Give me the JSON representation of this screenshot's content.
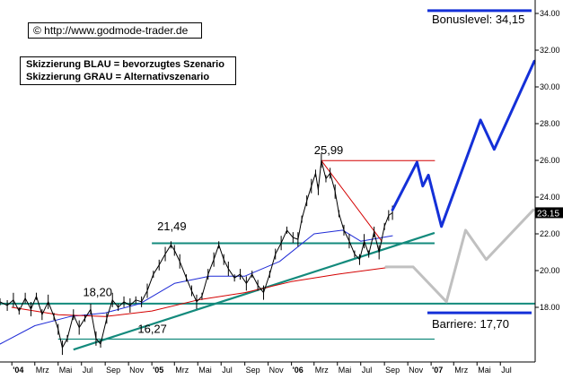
{
  "source_label": "© http://www.godmode-trader.de",
  "legend_lines": [
    "Skizzierung BLAU = bevorzugtes Szenario",
    "Skizzierung GRAU = Alternativszenario"
  ],
  "colors": {
    "price": "#000000",
    "ma_blue": "#1f2bd6",
    "ma_red": "#d40000",
    "trendline": "#138a7c",
    "scenario_preferred": "#1430d8",
    "scenario_alternative": "#c0c0c0",
    "resistance_line": "#d40000",
    "last_price_bg": "#000000",
    "last_price_fg": "#ffffff"
  },
  "chart_data": {
    "type": "line",
    "xlim": [
      "2003-12-01",
      "2007-09-30"
    ],
    "ylim": [
      15.0,
      34.3
    ],
    "y_ticks": [
      18.0,
      20.0,
      22.0,
      24.0,
      26.0,
      28.0,
      30.0,
      32.0,
      34.0
    ],
    "y_tick_labels": [
      "18.00",
      "20.00",
      "22.00",
      "24.00",
      "26.00",
      "28.00",
      "30.00",
      "32.00",
      "34.00"
    ],
    "x_ticks": [
      {
        "label": "'04",
        "date": "2004-01-01",
        "bold": true
      },
      {
        "label": "Mrz",
        "date": "2004-03-01",
        "bold": false
      },
      {
        "label": "Mai",
        "date": "2004-05-01",
        "bold": false
      },
      {
        "label": "Jul",
        "date": "2004-07-01",
        "bold": false
      },
      {
        "label": "Sep",
        "date": "2004-09-01",
        "bold": false
      },
      {
        "label": "Nov",
        "date": "2004-11-01",
        "bold": false
      },
      {
        "label": "'05",
        "date": "2005-01-01",
        "bold": true
      },
      {
        "label": "Mrz",
        "date": "2005-03-01",
        "bold": false
      },
      {
        "label": "Mai",
        "date": "2005-05-01",
        "bold": false
      },
      {
        "label": "Jul",
        "date": "2005-07-01",
        "bold": false
      },
      {
        "label": "Sep",
        "date": "2005-09-01",
        "bold": false
      },
      {
        "label": "Nov",
        "date": "2005-11-01",
        "bold": false
      },
      {
        "label": "'06",
        "date": "2006-01-01",
        "bold": true
      },
      {
        "label": "Mrz",
        "date": "2006-03-01",
        "bold": false
      },
      {
        "label": "Mai",
        "date": "2006-05-01",
        "bold": false
      },
      {
        "label": "Jul",
        "date": "2006-07-01",
        "bold": false
      },
      {
        "label": "Sep",
        "date": "2006-09-01",
        "bold": false
      },
      {
        "label": "Nov",
        "date": "2006-11-01",
        "bold": false
      },
      {
        "label": "'07",
        "date": "2007-01-01",
        "bold": true
      },
      {
        "label": "Mrz",
        "date": "2007-03-01",
        "bold": false
      },
      {
        "label": "Mai",
        "date": "2007-05-01",
        "bold": false
      },
      {
        "label": "Jul",
        "date": "2007-07-01",
        "bold": false
      }
    ],
    "last_price": "23.15",
    "series": [
      {
        "role": "price",
        "points": [
          [
            "2003-12-01",
            18.3
          ],
          [
            "2003-12-20",
            18.1
          ],
          [
            "2004-01-05",
            18.4
          ],
          [
            "2004-01-20",
            17.8
          ],
          [
            "2004-02-05",
            18.5
          ],
          [
            "2004-02-20",
            17.9
          ],
          [
            "2004-03-05",
            18.6
          ],
          [
            "2004-03-20",
            17.6
          ],
          [
            "2004-04-05",
            18.3
          ],
          [
            "2004-04-20",
            17.5
          ],
          [
            "2004-05-01",
            16.8
          ],
          [
            "2004-05-12",
            15.8
          ],
          [
            "2004-05-25",
            16.3
          ],
          [
            "2004-06-10",
            17.6
          ],
          [
            "2004-06-25",
            16.9
          ],
          [
            "2004-07-10",
            17.4
          ],
          [
            "2004-07-25",
            17.9
          ],
          [
            "2004-08-08",
            16.3
          ],
          [
            "2004-08-20",
            16.0
          ],
          [
            "2004-09-05",
            17.4
          ],
          [
            "2004-09-20",
            18.4
          ],
          [
            "2004-10-05",
            18.0
          ],
          [
            "2004-10-20",
            18.3
          ],
          [
            "2004-11-05",
            18.1
          ],
          [
            "2004-11-20",
            18.4
          ],
          [
            "2004-12-05",
            18.3
          ],
          [
            "2004-12-20",
            18.9
          ],
          [
            "2005-01-05",
            19.8
          ],
          [
            "2005-01-20",
            20.3
          ],
          [
            "2005-02-05",
            20.9
          ],
          [
            "2005-02-20",
            21.4
          ],
          [
            "2005-03-01",
            21.1
          ],
          [
            "2005-03-15",
            20.5
          ],
          [
            "2005-04-01",
            19.6
          ],
          [
            "2005-04-15",
            18.9
          ],
          [
            "2005-04-28",
            18.3
          ],
          [
            "2005-05-12",
            18.6
          ],
          [
            "2005-05-28",
            19.8
          ],
          [
            "2005-06-12",
            20.6
          ],
          [
            "2005-06-25",
            21.4
          ],
          [
            "2005-07-08",
            20.6
          ],
          [
            "2005-07-20",
            20.1
          ],
          [
            "2005-08-05",
            19.6
          ],
          [
            "2005-08-20",
            19.8
          ],
          [
            "2005-09-05",
            19.3
          ],
          [
            "2005-09-20",
            19.8
          ],
          [
            "2005-10-05",
            19.2
          ],
          [
            "2005-10-20",
            18.8
          ],
          [
            "2005-11-05",
            19.8
          ],
          [
            "2005-11-20",
            20.9
          ],
          [
            "2005-12-05",
            21.5
          ],
          [
            "2005-12-20",
            22.2
          ],
          [
            "2006-01-05",
            21.8
          ],
          [
            "2006-01-18",
            21.7
          ],
          [
            "2006-01-28",
            22.8
          ],
          [
            "2006-02-10",
            23.8
          ],
          [
            "2006-02-22",
            24.6
          ],
          [
            "2006-03-05",
            25.3
          ],
          [
            "2006-03-12",
            24.4
          ],
          [
            "2006-03-20",
            25.99
          ],
          [
            "2006-04-01",
            25.0
          ],
          [
            "2006-04-12",
            25.3
          ],
          [
            "2006-04-25",
            24.3
          ],
          [
            "2006-05-05",
            23.1
          ],
          [
            "2006-05-18",
            22.2
          ],
          [
            "2006-06-01",
            21.6
          ],
          [
            "2006-06-15",
            20.9
          ],
          [
            "2006-06-28",
            20.6
          ],
          [
            "2006-07-10",
            21.6
          ],
          [
            "2006-07-22",
            20.9
          ],
          [
            "2006-08-05",
            22.1
          ],
          [
            "2006-08-18",
            21.0
          ],
          [
            "2006-09-01",
            22.4
          ],
          [
            "2006-09-12",
            23.0
          ],
          [
            "2006-09-22",
            23.15
          ]
        ]
      },
      {
        "role": "moving-average-blue",
        "points": [
          [
            "2003-12-01",
            16.0
          ],
          [
            "2004-03-01",
            17.0
          ],
          [
            "2004-06-01",
            17.5
          ],
          [
            "2004-09-01",
            17.7
          ],
          [
            "2004-12-01",
            18.2
          ],
          [
            "2005-03-01",
            19.3
          ],
          [
            "2005-06-01",
            19.7
          ],
          [
            "2005-09-01",
            19.7
          ],
          [
            "2005-12-01",
            20.5
          ],
          [
            "2006-03-01",
            22.0
          ],
          [
            "2006-05-15",
            22.2
          ],
          [
            "2006-07-01",
            21.6
          ],
          [
            "2006-09-22",
            21.9
          ]
        ]
      },
      {
        "role": "moving-average-red",
        "points": [
          [
            "2004-01-01",
            18.0
          ],
          [
            "2004-05-01",
            17.6
          ],
          [
            "2004-09-01",
            17.5
          ],
          [
            "2005-01-01",
            17.8
          ],
          [
            "2005-05-01",
            18.4
          ],
          [
            "2005-09-01",
            18.8
          ],
          [
            "2006-01-01",
            19.4
          ],
          [
            "2006-05-01",
            19.8
          ],
          [
            "2006-09-22",
            20.2
          ]
        ]
      }
    ],
    "horizontal_lines": [
      {
        "value": 21.49,
        "from": "2005-01-01",
        "to": "2007-01-10",
        "label": "21,49",
        "color": "#138a7c"
      },
      {
        "value": 18.2,
        "from": "2003-12-01",
        "to": "2007-09-30",
        "label": "18,20",
        "color": "#138a7c"
      },
      {
        "value": 16.27,
        "from": "2004-05-01",
        "to": "2007-01-10",
        "label": "16,27",
        "color": "#138a7c"
      }
    ],
    "trendline": {
      "from": [
        "2004-06-10",
        15.7
      ],
      "to": [
        "2007-01-10",
        22.05
      ]
    },
    "resistance": {
      "points": [
        [
          "2006-03-20",
          25.99
        ],
        [
          "2007-01-10",
          25.99
        ]
      ],
      "diagonal_to": [
        "2006-08-25",
        21.6
      ]
    },
    "scenario_preferred": [
      [
        "2006-09-22",
        23.3
      ],
      [
        "2006-11-25",
        25.9
      ],
      [
        "2006-12-10",
        24.6
      ],
      [
        "2006-12-25",
        25.2
      ],
      [
        "2007-01-28",
        22.4
      ],
      [
        "2007-05-10",
        28.2
      ],
      [
        "2007-06-15",
        26.6
      ],
      [
        "2007-09-28",
        31.4
      ]
    ],
    "scenario_alternative": [
      [
        "2006-09-05",
        20.2
      ],
      [
        "2006-11-15",
        20.2
      ],
      [
        "2007-02-10",
        18.3
      ],
      [
        "2007-04-01",
        22.2
      ],
      [
        "2007-05-25",
        20.6
      ],
      [
        "2007-09-25",
        23.3
      ]
    ],
    "annotations": [
      {
        "text": "25,99",
        "x": "2006-03-01",
        "y": 26.35
      },
      {
        "text": "21,49",
        "x": "2005-01-15",
        "y": 22.2
      },
      {
        "text": "18,20",
        "x": "2004-07-05",
        "y": 18.6
      },
      {
        "text": "16,27",
        "x": "2004-11-25",
        "y": 16.6
      }
    ],
    "level_labels": [
      {
        "text": "Bonuslevel: 34,15",
        "value": 34.15
      },
      {
        "text": "Barriere: 17,70",
        "value": 17.7
      }
    ]
  }
}
